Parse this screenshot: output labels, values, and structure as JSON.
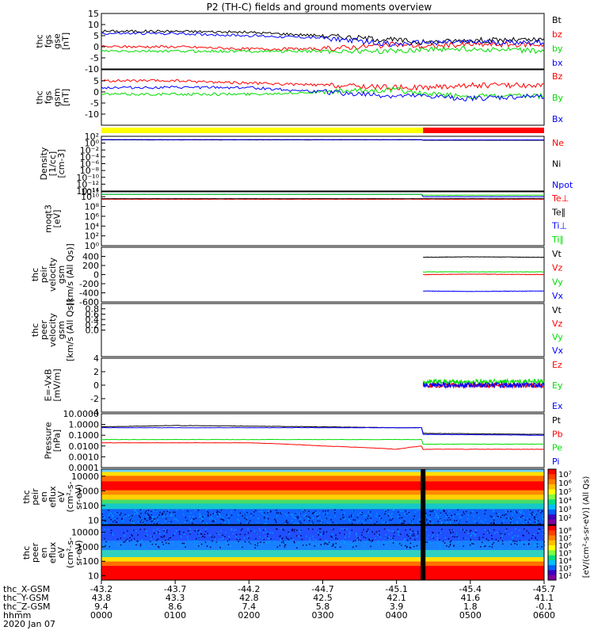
{
  "title": "P2 (TH-C) fields and ground moments overview",
  "colors": {
    "black": "#000000",
    "red": "#ff0000",
    "green": "#00dd00",
    "blue": "#0000ff",
    "yellow": "#ffff00"
  },
  "chart_data": [
    {
      "id": "fgs_gse",
      "type": "line",
      "ylabel": [
        "thc",
        "fgs",
        "gse",
        "[nT]"
      ],
      "ylim": [
        -10,
        15
      ],
      "ytick_values": [
        -10,
        -5,
        0,
        5,
        10,
        15
      ],
      "ytick_labels": [
        "-10",
        "-5",
        "0",
        "5",
        "10",
        "15"
      ],
      "series": [
        {
          "name": "Bt",
          "color": "black",
          "x": [
            0,
            1,
            2,
            3,
            4,
            4.4,
            5,
            6
          ],
          "values": [
            7,
            7,
            6.5,
            5,
            3,
            2,
            3,
            3
          ]
        },
        {
          "name": "bz",
          "color": "red",
          "x": [
            0,
            1,
            2,
            3,
            4,
            4.4,
            5,
            6
          ],
          "values": [
            0,
            0,
            -1,
            -1,
            1,
            0,
            1,
            1
          ]
        },
        {
          "name": "by",
          "color": "green",
          "x": [
            0,
            1,
            2,
            3,
            4,
            4.4,
            5,
            6
          ],
          "values": [
            -2,
            -2,
            -2,
            -2,
            -2,
            -1,
            -1,
            -2
          ]
        },
        {
          "name": "bx",
          "color": "blue",
          "x": [
            0,
            1,
            2,
            3,
            4,
            4.4,
            5,
            6
          ],
          "values": [
            6,
            6,
            5,
            4,
            1,
            2,
            2,
            2
          ]
        }
      ]
    },
    {
      "id": "fgs_gsm",
      "type": "line",
      "ylabel": [
        "thc",
        "fgs",
        "gsm",
        "[nT]"
      ],
      "ylim": [
        -15,
        10
      ],
      "ytick_values": [
        -10,
        -5,
        0,
        5
      ],
      "ytick_labels": [
        "-10",
        "-5",
        "0",
        "5"
      ],
      "series": [
        {
          "name": "Bz",
          "color": "red",
          "x": [
            0,
            1,
            2,
            3,
            4,
            4.4,
            5,
            6
          ],
          "values": [
            5,
            5,
            4,
            3,
            2,
            2,
            3,
            3
          ]
        },
        {
          "name": "By",
          "color": "green",
          "x": [
            0,
            1,
            2,
            3,
            4,
            4.4,
            5,
            6
          ],
          "values": [
            -1,
            -1,
            -1,
            0,
            1,
            -1,
            -2,
            -2
          ]
        },
        {
          "name": "Bx",
          "color": "blue",
          "x": [
            0,
            1,
            2,
            3,
            4,
            4.4,
            5,
            6
          ],
          "values": [
            2,
            2,
            2,
            0,
            -2,
            -2,
            -3,
            -2
          ]
        }
      ]
    },
    {
      "id": "density",
      "type": "line",
      "scale": "log",
      "ylabel": [
        "Density",
        "[1/cc]",
        "[cm-3]"
      ],
      "ylim": [
        1e-14,
        100
      ],
      "ytick_values": [
        100,
        1,
        0.01,
        0.0001,
        1e-06,
        1e-08,
        1e-10,
        1e-12,
        1e-14
      ],
      "ytick_labels": [
        "10²",
        "10⁰",
        "10⁻²",
        "10⁻⁴",
        "10⁻⁶",
        "10⁻⁸",
        "10⁻¹⁰",
        "10⁻¹²",
        "10⁻¹⁴"
      ],
      "series": [
        {
          "name": "Ne",
          "color": "red",
          "x": [
            0,
            4.35,
            4.36,
            6
          ],
          "values": [
            10,
            10,
            8,
            8
          ]
        },
        {
          "name": "Ni",
          "color": "black",
          "x": [
            0,
            4.35,
            4.36,
            6
          ],
          "values": [
            9,
            9,
            7,
            7
          ]
        },
        {
          "name": "Npot",
          "color": "blue",
          "x": [
            0,
            4.35,
            4.36,
            6
          ],
          "values": [
            11,
            11,
            9,
            9
          ]
        }
      ]
    },
    {
      "id": "temperature",
      "type": "line",
      "scale": "log",
      "ylabel": [
        "moqt3",
        "[eV]"
      ],
      "ylim": [
        1,
        100000000000.0
      ],
      "ytick_values": [
        1,
        100,
        10000.0,
        1000000.0,
        100000000.0,
        10000000000.0,
        100000000000.0
      ],
      "ytick_labels": [
        "10⁰",
        "10²",
        "10⁴",
        "10⁶",
        "10⁸",
        "10¹⁰",
        "10¹¹"
      ],
      "series": [
        {
          "name": "Te⊥",
          "color": "red",
          "x": [
            0,
            4.35,
            4.36,
            6
          ],
          "values": [
            3000000000.0,
            3000000000.0,
            3000000000.0,
            3000000000.0
          ]
        },
        {
          "name": "Te∥",
          "color": "black",
          "x": [
            0,
            4.35,
            4.36,
            6
          ],
          "values": [
            4000000000.0,
            4000000000.0,
            4000000000.0,
            4000000000.0
          ]
        },
        {
          "name": "Ti⊥",
          "color": "blue",
          "x": [
            0,
            4.35,
            4.36,
            6
          ],
          "values": [
            30000000000.0,
            30000000000.0,
            10000000000.0,
            10000000000.0
          ]
        },
        {
          "name": "Ti∥",
          "color": "green",
          "x": [
            0,
            4.35,
            4.36,
            6
          ],
          "values": [
            30000000000.0,
            30000000000.0,
            20000000000.0,
            20000000000.0
          ]
        }
      ]
    },
    {
      "id": "peir_velocity",
      "type": "line",
      "ylabel": [
        "thc",
        "peir",
        "velocity",
        "gsm",
        "[km/s (All Qs)]"
      ],
      "ylim": [
        -600,
        600
      ],
      "ytick_values": [
        -600,
        -400,
        -200,
        0,
        200,
        400
      ],
      "ytick_labels": [
        "-600",
        "-400",
        "-200",
        "0",
        "200",
        "400"
      ],
      "series": [
        {
          "name": "Vt",
          "color": "black",
          "x": [
            4.36,
            5,
            6
          ],
          "values": [
            380,
            390,
            380
          ]
        },
        {
          "name": "Vz",
          "color": "red",
          "x": [
            4.36,
            5,
            6
          ],
          "values": [
            0,
            10,
            0
          ]
        },
        {
          "name": "Vy",
          "color": "green",
          "x": [
            4.36,
            5,
            6
          ],
          "values": [
            60,
            60,
            60
          ]
        },
        {
          "name": "Vx",
          "color": "blue",
          "x": [
            4.36,
            5,
            6
          ],
          "values": [
            -360,
            -370,
            -360
          ]
        }
      ]
    },
    {
      "id": "peer_velocity",
      "type": "line",
      "ylabel": [
        "thc",
        "peer",
        "velocity",
        "gsm",
        "[km/s (All Qs)]"
      ],
      "ylim": [
        -1,
        1
      ],
      "ytick_values": [
        0,
        0.2,
        0.4,
        0.6,
        0.8
      ],
      "ytick_labels": [
        "0.0",
        "0.2",
        "0.4",
        "0.6",
        "0.8"
      ],
      "series": [
        {
          "name": "Vt",
          "color": "black"
        },
        {
          "name": "Vz",
          "color": "red"
        },
        {
          "name": "Vy",
          "color": "green"
        },
        {
          "name": "Vx",
          "color": "blue"
        }
      ]
    },
    {
      "id": "efield",
      "type": "line",
      "ylabel": [
        "E=-VxB",
        "[mV/m]"
      ],
      "ylim": [
        -4,
        4
      ],
      "ytick_values": [
        -4,
        -2,
        0,
        2,
        4
      ],
      "ytick_labels": [
        "-4",
        "-2",
        "0",
        "2",
        "4"
      ],
      "series": [
        {
          "name": "Ez",
          "color": "red",
          "x": [
            4.36,
            5,
            6
          ],
          "values": [
            0,
            0,
            0
          ]
        },
        {
          "name": "Ey",
          "color": "green",
          "x": [
            4.36,
            5,
            6
          ],
          "values": [
            0.5,
            0.5,
            0.5
          ]
        },
        {
          "name": "Ex",
          "color": "blue",
          "x": [
            4.36,
            5,
            6
          ],
          "values": [
            0,
            0,
            0
          ]
        }
      ]
    },
    {
      "id": "pressure",
      "type": "line",
      "scale": "log",
      "ylabel": [
        "Pressure",
        "[nPa]"
      ],
      "ylim": [
        0.0001,
        10
      ],
      "ytick_values": [
        10,
        1,
        0.1,
        0.01,
        0.001,
        0.0001
      ],
      "ytick_labels": [
        "10.0000",
        "1.0000",
        "0.1000",
        "0.0100",
        "0.0010",
        "0.0001"
      ],
      "series": [
        {
          "name": "Pt",
          "color": "black",
          "x": [
            0,
            1,
            2,
            3,
            4,
            4.35,
            4.36,
            6
          ],
          "values": [
            0.6,
            0.8,
            0.7,
            0.6,
            0.5,
            0.5,
            0.15,
            0.12
          ]
        },
        {
          "name": "Pb",
          "color": "red",
          "x": [
            0,
            1,
            2,
            3,
            4,
            4.35,
            4.36,
            6
          ],
          "values": [
            0.02,
            0.02,
            0.02,
            0.01,
            0.005,
            0.01,
            0.005,
            0.005
          ]
        },
        {
          "name": "Pe",
          "color": "green",
          "x": [
            0,
            1,
            2,
            3,
            4,
            4.35,
            4.36,
            6
          ],
          "values": [
            0.04,
            0.04,
            0.04,
            0.04,
            0.04,
            0.04,
            0.015,
            0.015
          ]
        },
        {
          "name": "Pi",
          "color": "blue",
          "x": [
            0,
            1,
            2,
            3,
            4,
            4.35,
            4.36,
            6
          ],
          "values": [
            0.5,
            0.5,
            0.5,
            0.5,
            0.5,
            0.5,
            0.12,
            0.1
          ]
        }
      ]
    },
    {
      "id": "peir_spectrogram",
      "type": "heatmap",
      "scale": "log",
      "ylabel": [
        "thc",
        "peir",
        "en",
        "eflux",
        "eV",
        "(cm²-s-",
        "sr-eV)"
      ],
      "ylim": [
        5,
        30000
      ],
      "ytick_values": [
        10,
        100,
        1000,
        10000
      ],
      "ytick_labels": [
        "10",
        "100",
        "1000",
        "10000"
      ]
    },
    {
      "id": "peer_spectrogram",
      "type": "heatmap",
      "scale": "log",
      "ylabel": [
        "thc",
        "peer",
        "en",
        "eflux",
        "eV",
        "(cm²-s-",
        "sr-eV)"
      ],
      "ylim": [
        5,
        30000
      ],
      "ytick_values": [
        10,
        100,
        1000,
        10000
      ],
      "ytick_labels": [
        "10",
        "100",
        "1000",
        "10000"
      ]
    }
  ],
  "colorbar": {
    "label": "[eV/(cm²-s-sr-eV)] (All Qs)",
    "ticks_upper": [
      "10⁷",
      "10⁶",
      "10⁵",
      "10⁴",
      "10³",
      "10²"
    ],
    "ticks_lower": [
      "10⁸",
      "10⁷",
      "10⁶",
      "10⁵",
      "10⁴",
      "10³",
      "10²"
    ]
  },
  "xaxis": {
    "row_labels": [
      "thc_X-GSM",
      "thc_Y-GSM",
      "thc_Z-GSM",
      "hhmm",
      "2020 Jan 07"
    ],
    "ticks": [
      {
        "x": -43.2,
        "y": 43.8,
        "z": 9.4,
        "hhmm": "0000"
      },
      {
        "x": -43.7,
        "y": 43.3,
        "z": 8.6,
        "hhmm": "0100"
      },
      {
        "x": -44.2,
        "y": 42.8,
        "z": 7.4,
        "hhmm": "0200"
      },
      {
        "x": -44.7,
        "y": 42.5,
        "z": 5.8,
        "hhmm": "0300"
      },
      {
        "x": -45.1,
        "y": 42.1,
        "z": 3.9,
        "hhmm": "0400"
      },
      {
        "x": -45.4,
        "y": 41.6,
        "z": 1.8,
        "hhmm": "0500"
      },
      {
        "x": -45.7,
        "y": 41.1,
        "z": -0.1,
        "hhmm": "0600"
      }
    ]
  },
  "mode_bar": [
    {
      "from": 0,
      "to": 4.36,
      "color": "yellow"
    },
    {
      "from": 4.36,
      "to": 6,
      "color": "red"
    }
  ]
}
